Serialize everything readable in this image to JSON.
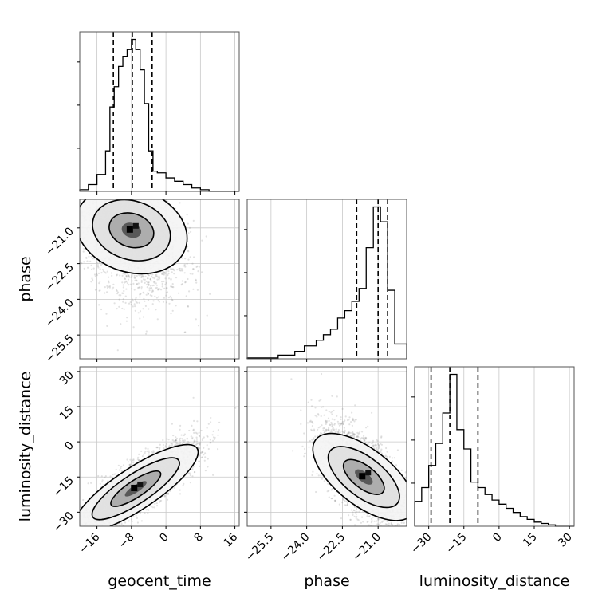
{
  "chart_data": {
    "type": "corner",
    "parameters": [
      "geocent_time",
      "phase",
      "luminosity_distance"
    ],
    "ranges": {
      "geocent_time": [
        -20,
        17
      ],
      "phase": [
        -26.5,
        -19.8
      ],
      "luminosity_distance": [
        -36,
        32
      ]
    },
    "ticks": {
      "geocent_time": [
        -16,
        -8,
        0,
        8,
        16
      ],
      "phase": [
        -25.5,
        -24.0,
        -22.5,
        -21.0
      ],
      "luminosity_distance": [
        -30,
        -15,
        0,
        15,
        30
      ]
    },
    "tick_labels": {
      "geocent_time": [
        "−16",
        "−8",
        "0",
        "8",
        "16"
      ],
      "phase": [
        "−25.5",
        "−24.0",
        "−22.5",
        "−21.0"
      ],
      "luminosity_distance": [
        "−30",
        "−15",
        "0",
        "15",
        "30"
      ]
    },
    "axis_labels": {
      "geocent_time": "geocent_time",
      "phase": "phase",
      "luminosity_distance": "luminosity_distance"
    },
    "quantiles": {
      "geocent_time": [
        -12.2,
        -7.8,
        -3.2
      ],
      "phase": [
        -21.9,
        -21.0,
        -20.6
      ],
      "luminosity_distance": [
        -29,
        -21,
        -9
      ]
    },
    "histograms": {
      "geocent_time": {
        "edges": [
          -20,
          -18,
          -16,
          -14,
          -13,
          -12,
          -11,
          -10,
          -9,
          -8,
          -7,
          -6,
          -5,
          -4,
          -3,
          -2,
          0,
          2,
          4,
          6,
          8,
          10,
          17
        ],
        "values": [
          1,
          4,
          10,
          24,
          50,
          62,
          74,
          80,
          84,
          90,
          84,
          72,
          52,
          24,
          12,
          11,
          8,
          6,
          4,
          2,
          1,
          0
        ]
      },
      "phase": {
        "edges": [
          -26.5,
          -25.2,
          -24.5,
          -24.1,
          -23.6,
          -23.3,
          -23.0,
          -22.7,
          -22.4,
          -22.1,
          -21.8,
          -21.5,
          -21.2,
          -20.9,
          -20.6,
          -20.3,
          -19.8
        ],
        "values": [
          0.5,
          2,
          4,
          7,
          10,
          13,
          16,
          22,
          26,
          31,
          38,
          60,
          82,
          74,
          37,
          8
        ]
      },
      "luminosity_distance": {
        "edges": [
          -36,
          -33,
          -30,
          -27,
          -24,
          -21,
          -18,
          -15,
          -12,
          -9,
          -6,
          -3,
          0,
          3,
          6,
          9,
          12,
          15,
          18,
          21,
          24,
          32
        ],
        "values": [
          18,
          28,
          44,
          60,
          82,
          110,
          70,
          56,
          32,
          28,
          23,
          19,
          16,
          13,
          10,
          7,
          5,
          3,
          2,
          1,
          0
        ]
      }
    },
    "samples": {
      "phase_vs_geocent_time": {
        "mean": [
          -8,
          -21.1
        ],
        "sd": [
          5.5,
          1.1
        ],
        "corr": -0.3,
        "tail": "negative-y"
      },
      "luminosity_distance_vs_geocent_time": {
        "mean": [
          -7,
          -20
        ],
        "sd": [
          7,
          10
        ],
        "corr": 0.85
      },
      "luminosity_distance_vs_phase": {
        "mean": [
          -21.6,
          -15
        ],
        "sd": [
          0.9,
          11
        ],
        "corr": -0.65
      }
    }
  }
}
